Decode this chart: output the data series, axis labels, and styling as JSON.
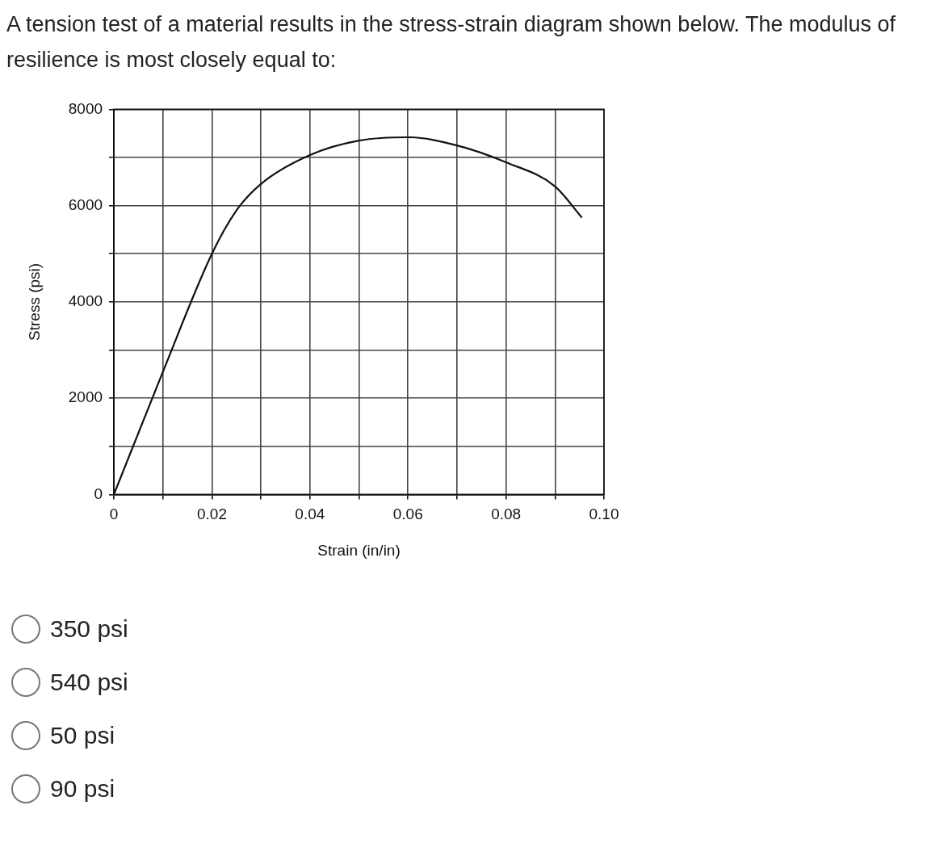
{
  "chart_data": {
    "type": "line",
    "title": "A tension test of a material results in the stress-strain diagram shown below. The modulus of resilience is most closely equal to:",
    "xlabel": "Strain (in/in)",
    "ylabel": "Stress (psi)",
    "series": [
      {
        "color": "#111111",
        "x": [
          0,
          0.01,
          0.02,
          0.025,
          0.03,
          0.04,
          0.05,
          0.06,
          0.07,
          0.08,
          0.09,
          0.0955
        ],
        "values": [
          0,
          2550,
          5000,
          5900,
          6450,
          7050,
          7350,
          7420,
          7250,
          6900,
          6400,
          5750
        ]
      }
    ],
    "xlim": [
      0,
      0.1
    ],
    "ylim": [
      0,
      8000
    ],
    "xticks": [
      0,
      {
        "value": 0.01,
        "label": null
      },
      0.02,
      {
        "value": 0.03,
        "label": null
      },
      0.04,
      {
        "value": 0.05,
        "label": null
      },
      0.06,
      {
        "value": 0.07,
        "label": null
      },
      0.08,
      {
        "value": 0.09,
        "label": null
      },
      {
        "value": 0.1,
        "label": "0.10"
      }
    ],
    "yticks": [
      0,
      {
        "value": 1000,
        "label": null
      },
      2000,
      {
        "value": 3000,
        "label": null
      },
      4000,
      {
        "value": 5000,
        "label": null
      },
      6000,
      {
        "value": 7000,
        "label": null
      },
      8000
    ],
    "grid": true,
    "marker": "none",
    "line_style": "solid",
    "legend": false,
    "annotations": [
      "350 psi",
      "540 psi",
      "50 psi",
      "90 psi"
    ]
  }
}
